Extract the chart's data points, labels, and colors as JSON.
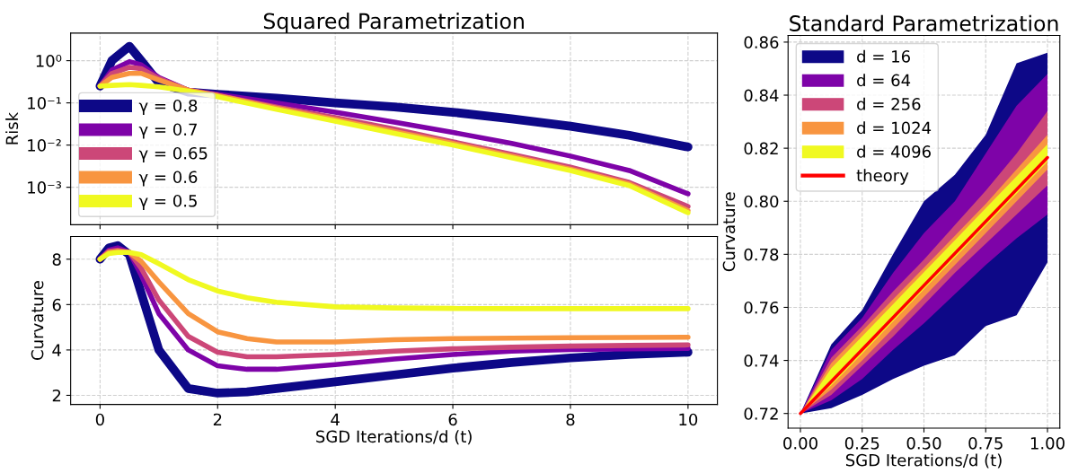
{
  "chart_data": [
    {
      "type": "line",
      "title": "Squared Parametrization",
      "ylabel": "Risk",
      "log": "y",
      "grid": true,
      "legend": "lower left",
      "tick_labels": "y",
      "x": [
        0,
        0.2,
        0.5,
        0.7,
        1,
        1.5,
        2,
        3,
        4,
        5,
        6,
        7,
        8,
        9,
        10
      ],
      "xlim": [
        -0.5,
        10.5
      ],
      "xticks": [
        0,
        2,
        4,
        6,
        8,
        10
      ],
      "ylim": [
        0.00013,
        4.5
      ],
      "yticks": [
        {
          "value": 0.001,
          "label": "10⁻³"
        },
        {
          "value": 0.01,
          "label": "10⁻²"
        },
        {
          "value": 0.1,
          "label": "10⁻¹"
        },
        {
          "value": 1,
          "label": "10⁰"
        }
      ],
      "series": [
        {
          "name": "γ = 0.8",
          "color": "#0d0887",
          "values": [
            0.25,
            1.0,
            2.2,
            1.0,
            0.3,
            0.18,
            0.16,
            0.13,
            0.1,
            0.08,
            0.06,
            0.042,
            0.028,
            0.017,
            0.009
          ]
        },
        {
          "name": "γ = 0.7",
          "color": "#7e03a8",
          "values": [
            0.25,
            0.6,
            0.95,
            0.8,
            0.4,
            0.2,
            0.16,
            0.1,
            0.06,
            0.035,
            0.02,
            0.011,
            0.0055,
            0.0025,
            0.0007
          ]
        },
        {
          "name": "γ = 0.65",
          "color": "#cc4778",
          "values": [
            0.25,
            0.5,
            0.7,
            0.65,
            0.38,
            0.2,
            0.15,
            0.08,
            0.045,
            0.024,
            0.012,
            0.006,
            0.003,
            0.0013,
            0.00035
          ]
        },
        {
          "name": "γ = 0.6",
          "color": "#f89540",
          "values": [
            0.25,
            0.4,
            0.5,
            0.5,
            0.35,
            0.2,
            0.15,
            0.075,
            0.04,
            0.021,
            0.011,
            0.0055,
            0.0027,
            0.0012,
            0.00028
          ]
        },
        {
          "name": "γ = 0.5",
          "color": "#f0f921",
          "values": [
            0.25,
            0.26,
            0.27,
            0.26,
            0.24,
            0.19,
            0.14,
            0.07,
            0.037,
            0.019,
            0.01,
            0.005,
            0.0025,
            0.0011,
            0.00025
          ]
        }
      ]
    },
    {
      "type": "line",
      "xlabel": "SGD Iterations/d (t)",
      "ylabel": "Curvature",
      "grid": true,
      "x": [
        0,
        0.15,
        0.3,
        0.5,
        0.7,
        1,
        1.5,
        2,
        2.5,
        3,
        4,
        5,
        6,
        7,
        8,
        9,
        10
      ],
      "xlim": [
        -0.5,
        10.5
      ],
      "xticks": [
        0,
        2,
        4,
        6,
        8,
        10
      ],
      "ylim": [
        1.6,
        9
      ],
      "yticks": [
        2,
        4,
        6,
        8
      ],
      "series": [
        {
          "color": "#0d0887",
          "values": [
            8,
            8.5,
            8.6,
            8.2,
            6.5,
            4.0,
            2.3,
            2.1,
            2.15,
            2.3,
            2.6,
            2.9,
            3.2,
            3.45,
            3.65,
            3.8,
            3.9
          ]
        },
        {
          "color": "#7e03a8",
          "values": [
            8,
            8.4,
            8.5,
            8.3,
            7.3,
            5.6,
            4.0,
            3.3,
            3.15,
            3.15,
            3.35,
            3.6,
            3.8,
            3.95,
            4.02,
            4.05,
            4.07
          ]
        },
        {
          "color": "#cc4778",
          "values": [
            8,
            8.35,
            8.4,
            8.3,
            7.6,
            6.2,
            4.6,
            3.9,
            3.7,
            3.7,
            3.8,
            3.95,
            4.05,
            4.12,
            4.17,
            4.2,
            4.22
          ]
        },
        {
          "color": "#f89540",
          "values": [
            8,
            8.3,
            8.35,
            8.3,
            7.9,
            7.0,
            5.6,
            4.8,
            4.5,
            4.35,
            4.35,
            4.45,
            4.5,
            4.52,
            4.54,
            4.55,
            4.56
          ]
        },
        {
          "color": "#f0f921",
          "values": [
            8,
            8.25,
            8.3,
            8.3,
            8.2,
            7.8,
            7.1,
            6.6,
            6.3,
            6.1,
            5.9,
            5.85,
            5.83,
            5.82,
            5.82,
            5.82,
            5.82
          ]
        }
      ]
    },
    {
      "type": "line",
      "title": "Standard Parametrization",
      "xlabel": "SGD Iterations/d (t)",
      "ylabel": "Curvature",
      "grid": true,
      "legend": "top left",
      "x": [
        0,
        0.125,
        0.25,
        0.375,
        0.5,
        0.625,
        0.75,
        0.875,
        1
      ],
      "xlim": [
        -0.05,
        1.05
      ],
      "xticks": [
        {
          "value": 0,
          "label": "0.00"
        },
        0.25,
        {
          "value": 0.5,
          "label": "0.50"
        },
        0.75,
        {
          "value": 1,
          "label": "1.00"
        }
      ],
      "ylim": [
        0.7145,
        0.8625
      ],
      "yticks": [
        {
          "value": 0.72,
          "label": "0.72"
        },
        {
          "value": 0.74,
          "label": "0.74"
        },
        {
          "value": 0.76,
          "label": "0.76"
        },
        {
          "value": 0.78,
          "label": "0.78"
        },
        {
          "value": 0.8,
          "label": "0.80"
        },
        {
          "value": 0.82,
          "label": "0.82"
        },
        {
          "value": 0.84,
          "label": "0.84"
        },
        {
          "value": 0.86,
          "label": "0.86"
        }
      ],
      "series": [
        {
          "name": "d = 16",
          "color": "#0d0887",
          "values": [
            null,
            null,
            null,
            null,
            null,
            null,
            null,
            null,
            null
          ],
          "lower": [
            0.72,
            0.722,
            0.727,
            0.733,
            0.738,
            0.742,
            0.753,
            0.757,
            0.777
          ],
          "upper": [
            0.72,
            0.746,
            0.759,
            0.78,
            0.8,
            0.81,
            0.825,
            0.852,
            0.856
          ]
        },
        {
          "name": "d = 64",
          "color": "#7e03a8",
          "values": [
            null,
            null,
            null,
            null,
            null,
            null,
            null,
            null,
            null
          ],
          "lower": [
            0.72,
            0.725,
            0.733,
            0.744,
            0.754,
            0.765,
            0.776,
            0.786,
            0.795
          ],
          "upper": [
            0.72,
            0.744,
            0.756,
            0.773,
            0.788,
            0.8,
            0.818,
            0.836,
            0.848
          ]
        },
        {
          "name": "d = 256",
          "color": "#cc4778",
          "values": [
            null,
            null,
            null,
            null,
            null,
            null,
            null,
            null,
            null
          ],
          "lower": [
            0.72,
            0.727,
            0.738,
            0.749,
            0.761,
            0.773,
            0.784,
            0.795,
            0.806
          ],
          "upper": [
            0.72,
            0.741,
            0.753,
            0.766,
            0.778,
            0.791,
            0.804,
            0.818,
            0.834
          ]
        },
        {
          "name": "d = 1024",
          "color": "#f89540",
          "values": [
            null,
            null,
            null,
            null,
            null,
            null,
            null,
            null,
            null
          ],
          "lower": [
            0.72,
            0.729,
            0.74,
            0.752,
            0.764,
            0.776,
            0.788,
            0.8,
            0.812
          ],
          "upper": [
            0.72,
            0.739,
            0.751,
            0.763,
            0.775,
            0.787,
            0.799,
            0.812,
            0.825
          ]
        },
        {
          "name": "d = 4096",
          "color": "#f0f921",
          "values": [
            null,
            null,
            null,
            null,
            null,
            null,
            null,
            null,
            null
          ],
          "lower": [
            0.72,
            0.7306,
            0.7426,
            0.7547,
            0.7668,
            0.7788,
            0.7909,
            0.8029,
            0.815
          ],
          "upper": [
            0.72,
            0.7371,
            0.7491,
            0.7612,
            0.7733,
            0.7853,
            0.7974,
            0.8094,
            0.8215
          ]
        },
        {
          "name": "theory",
          "color": "#ff0000",
          "x": [
            0,
            1
          ],
          "values": [
            0.72,
            0.8165
          ]
        }
      ]
    }
  ]
}
